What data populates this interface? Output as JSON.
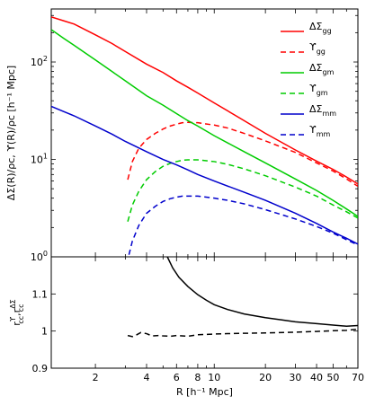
{
  "chart_data": [
    {
      "type": "line",
      "panel": "top",
      "xscale": "log",
      "yscale": "log",
      "xlim": [
        1.1,
        70
      ],
      "ylim": [
        1,
        350
      ],
      "ylabel": "ΔΣ(R)/ρc, ϒ(R)/ρc [h⁻¹ Mpc]",
      "yticks": [
        {
          "value": 1,
          "base": "10",
          "exp": "0"
        },
        {
          "value": 10,
          "base": "10",
          "exp": "1"
        },
        {
          "value": 100,
          "base": "10",
          "exp": "2"
        }
      ],
      "legend": {
        "position": "top-right",
        "entries": [
          {
            "series": 0,
            "base": "ΔΣ",
            "sub": "gg"
          },
          {
            "series": 1,
            "base": "ϒ",
            "sub": "gg"
          },
          {
            "series": 2,
            "base": "ΔΣ",
            "sub": "gm"
          },
          {
            "series": 3,
            "base": "ϒ",
            "sub": "gm"
          },
          {
            "series": 4,
            "base": "ΔΣ",
            "sub": "mm"
          },
          {
            "series": 5,
            "base": "ϒ",
            "sub": "mm"
          }
        ]
      },
      "series": [
        {
          "color": "#ff0000",
          "dash": "solid",
          "x": [
            1.1,
            1.3,
            1.5,
            2,
            2.5,
            3,
            4,
            5,
            6,
            7,
            8,
            10,
            15,
            20,
            30,
            40,
            50,
            60,
            70
          ],
          "y": [
            290,
            265,
            245,
            190,
            155,
            128,
            95,
            78,
            64,
            55,
            48,
            38,
            25,
            18.5,
            12.5,
            9.6,
            7.9,
            6.6,
            5.6
          ]
        },
        {
          "color": "#ff0000",
          "dash": "dashed",
          "x": [
            3.1,
            3.3,
            3.6,
            4,
            4.5,
            5,
            5.5,
            6,
            6.5,
            7,
            8,
            10,
            12,
            15,
            20,
            30,
            40,
            50,
            60,
            70
          ],
          "y": [
            6.2,
            9.5,
            13,
            16,
            18.5,
            20.5,
            22,
            23,
            23.8,
            24,
            23.8,
            22.5,
            21,
            18.5,
            15.5,
            11.8,
            9.2,
            7.6,
            6.3,
            5.3
          ]
        },
        {
          "color": "#00cc00",
          "dash": "solid",
          "x": [
            1.1,
            1.3,
            1.5,
            2,
            2.5,
            3,
            4,
            5,
            6,
            7,
            8,
            10,
            15,
            20,
            30,
            40,
            50,
            60,
            70
          ],
          "y": [
            215,
            175,
            148,
            105,
            80,
            64,
            45,
            36,
            29.5,
            25,
            22,
            17.5,
            12,
            9.2,
            6.3,
            4.8,
            3.8,
            3.1,
            2.6
          ]
        },
        {
          "color": "#00cc00",
          "dash": "dashed",
          "x": [
            3.1,
            3.3,
            3.6,
            4,
            4.5,
            5,
            5.5,
            6,
            6.5,
            7,
            8,
            10,
            12,
            15,
            20,
            30,
            40,
            50,
            60,
            70
          ],
          "y": [
            2.3,
            3.4,
            4.7,
            6.2,
            7.5,
            8.5,
            9.1,
            9.5,
            9.8,
            9.9,
            9.9,
            9.5,
            8.9,
            8,
            6.8,
            5.2,
            4.2,
            3.4,
            2.9,
            2.5
          ]
        },
        {
          "color": "#0000cc",
          "dash": "solid",
          "x": [
            1.1,
            1.3,
            1.5,
            2,
            2.5,
            3,
            4,
            5,
            6,
            7,
            8,
            10,
            15,
            20,
            30,
            40,
            50,
            60,
            70
          ],
          "y": [
            35,
            31,
            28,
            22,
            18.2,
            15.3,
            12,
            10,
            8.8,
            7.8,
            7,
            6,
            4.6,
            3.8,
            2.8,
            2.2,
            1.8,
            1.55,
            1.35
          ]
        },
        {
          "color": "#0000cc",
          "dash": "dashed",
          "x": [
            3.15,
            3.3,
            3.6,
            4,
            4.5,
            5,
            5.5,
            6,
            6.5,
            7,
            8,
            10,
            12,
            15,
            20,
            30,
            40,
            50,
            60,
            70
          ],
          "y": [
            1.05,
            1.45,
            2.1,
            2.8,
            3.3,
            3.7,
            3.95,
            4.1,
            4.2,
            4.2,
            4.2,
            4,
            3.8,
            3.5,
            3.05,
            2.45,
            2.05,
            1.75,
            1.5,
            1.32
          ]
        }
      ]
    },
    {
      "type": "line",
      "panel": "bottom",
      "xscale": "log",
      "xlim": [
        1.1,
        70
      ],
      "ylim": [
        0.9,
        1.2
      ],
      "xlabel": "R [h⁻¹ Mpc]",
      "ylabel": "rccϒ, rccΔΣ",
      "ylabel_parts": {
        "base": "r",
        "sup1": "ϒ",
        "sub1": "cc",
        "sep": ",r",
        "sup2": "ΔΣ",
        "sub2": "cc"
      },
      "yticks": [
        {
          "value": 0.9,
          "label": "0.9"
        },
        {
          "value": 1,
          "label": "1"
        },
        {
          "value": 1.1,
          "label": "1.1"
        }
      ],
      "xticks": [
        {
          "value": 2,
          "label": "2"
        },
        {
          "value": 4,
          "label": "4"
        },
        {
          "value": 6,
          "label": "6"
        },
        {
          "value": 8,
          "label": "8"
        },
        {
          "value": 10,
          "label": "10"
        },
        {
          "value": 20,
          "label": "20"
        },
        {
          "value": 30,
          "label": "30"
        },
        {
          "value": 40,
          "label": "40"
        },
        {
          "value": 50,
          "label": "50"
        },
        {
          "value": 70,
          "label": "70"
        }
      ],
      "series": [
        {
          "color": "#000000",
          "dash": "solid",
          "x": [
            5.3,
            5.7,
            6.2,
            7,
            8,
            9,
            10,
            12,
            15,
            20,
            25,
            30,
            40,
            50,
            60,
            70
          ],
          "y": [
            1.2,
            1.17,
            1.145,
            1.12,
            1.098,
            1.083,
            1.071,
            1.058,
            1.046,
            1.036,
            1.03,
            1.025,
            1.02,
            1.016,
            1.013,
            1.015
          ]
        },
        {
          "color": "#000000",
          "dash": "dashed",
          "x": [
            3.1,
            3.3,
            3.5,
            3.7,
            4,
            4.3,
            4.7,
            5,
            5.5,
            6,
            7,
            8,
            10,
            12,
            15,
            20,
            30,
            40,
            50,
            60,
            70
          ],
          "y": [
            0.988,
            0.985,
            0.99,
            0.996,
            0.993,
            0.987,
            0.988,
            0.987,
            0.986,
            0.988,
            0.986,
            0.99,
            0.992,
            0.993,
            0.994,
            0.995,
            0.997,
            0.999,
            1.001,
            1.002,
            1.005
          ]
        }
      ]
    }
  ]
}
